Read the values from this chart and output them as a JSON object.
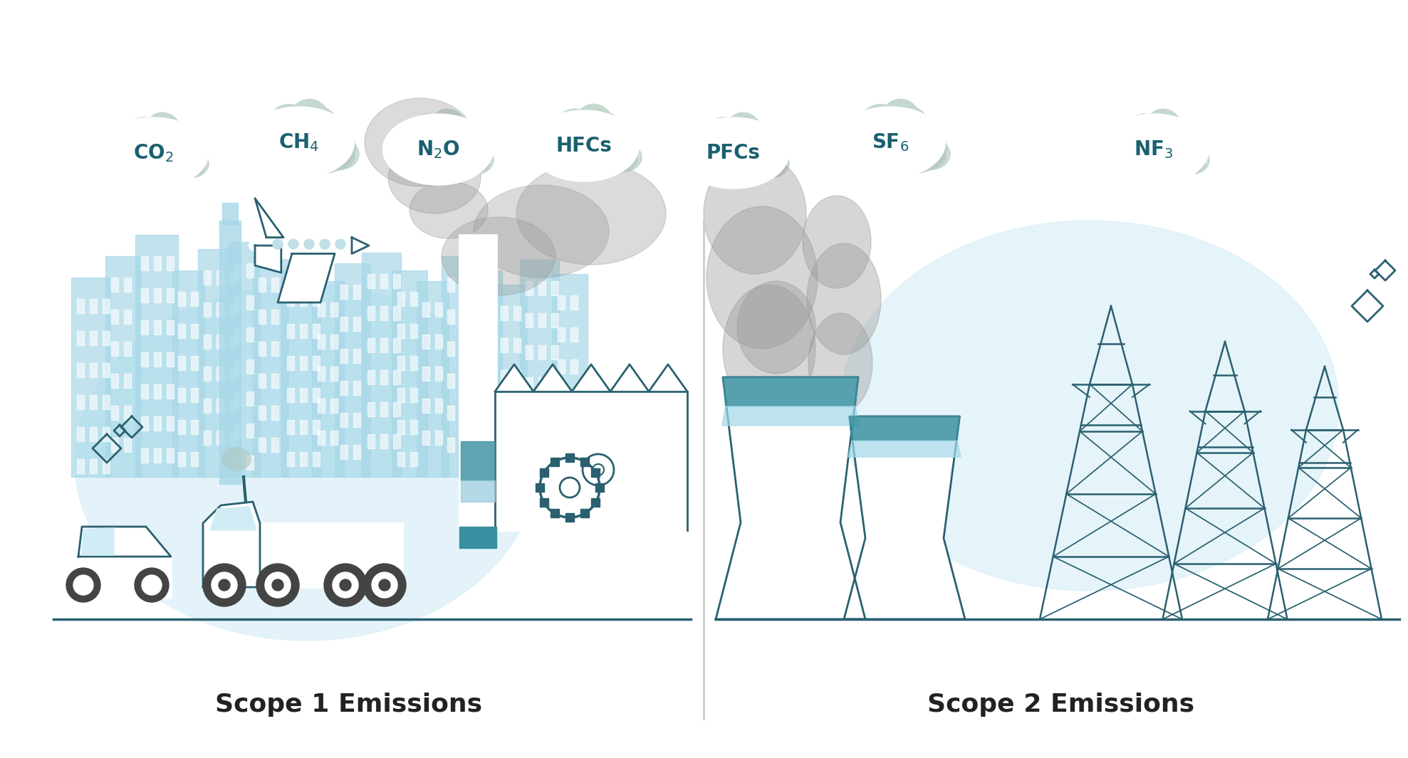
{
  "bg_color": "#ffffff",
  "cloud_color": "#c5d8ce",
  "cloud_shadow_color": "#b0c8bb",
  "circle_color": "#ffffff",
  "text_color": "#1a6070",
  "teal_color": "#3a8fa0",
  "bldg_color": "#a8d8e8",
  "bldg_dark": "#7bb8cc",
  "line_color": "#2a6070",
  "smoke_color": "#aaaaaa",
  "scope1_bg": "#d8eff7",
  "scope2_bg": "#d8eff7",
  "label_color": "#222222",
  "divider_color": "#cccccc",
  "scope1_label": "Scope 1 Emissions",
  "scope2_label": "Scope 2 Emissions",
  "gas_fontsize": 18,
  "title_fontsize": 26
}
